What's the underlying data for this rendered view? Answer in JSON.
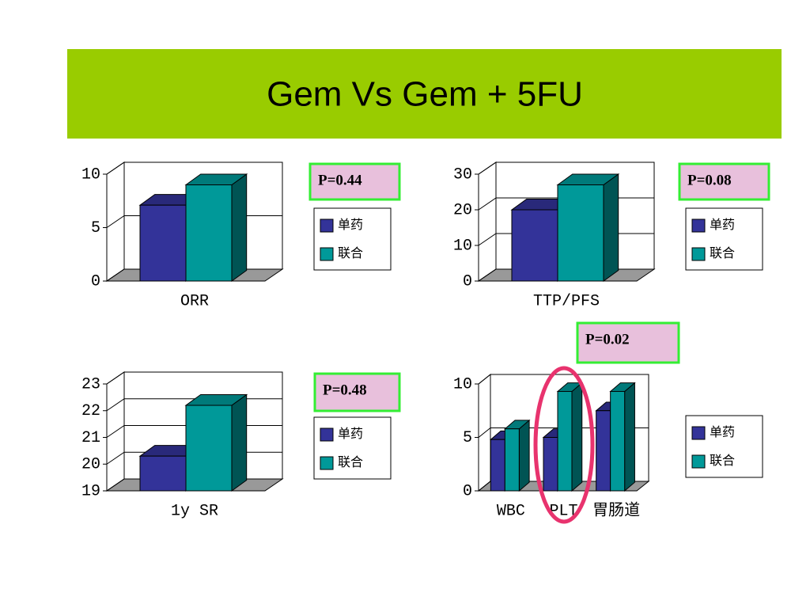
{
  "title": "Gem Vs Gem + 5FU",
  "chart_data": [
    {
      "type": "bar",
      "categories": [
        "ORR"
      ],
      "annotation": "P=0.44",
      "series": [
        {
          "name": "单药",
          "color": "#333399",
          "values": [
            7.1
          ]
        },
        {
          "name": "联合",
          "color": "#009999",
          "values": [
            9.0
          ]
        }
      ],
      "ylim": [
        0,
        10
      ],
      "yticks": [
        0,
        5,
        10
      ],
      "grid": true
    },
    {
      "type": "bar",
      "categories": [
        "TTP/PFS"
      ],
      "annotation": "P=0.08",
      "series": [
        {
          "name": "单药",
          "color": "#333399",
          "values": [
            20
          ]
        },
        {
          "name": "联合",
          "color": "#009999",
          "values": [
            27
          ]
        }
      ],
      "ylim": [
        0,
        30
      ],
      "yticks": [
        0,
        10,
        20,
        30
      ],
      "grid": true
    },
    {
      "type": "bar",
      "categories": [
        "1y SR"
      ],
      "annotation": "P=0.48",
      "series": [
        {
          "name": "单药",
          "color": "#333399",
          "values": [
            20.3
          ]
        },
        {
          "name": "联合",
          "color": "#009999",
          "values": [
            22.2
          ]
        }
      ],
      "ylim": [
        19,
        23
      ],
      "yticks": [
        19,
        20,
        21,
        22,
        23
      ],
      "grid": true
    },
    {
      "type": "bar",
      "categories": [
        "WBC",
        "PLT",
        "胃肠道"
      ],
      "annotation": "P=0.02",
      "series": [
        {
          "name": "单药",
          "color": "#333399",
          "values": [
            4.8,
            5.0,
            7.5
          ]
        },
        {
          "name": "联合",
          "color": "#009999",
          "values": [
            5.8,
            9.3,
            9.3
          ]
        }
      ],
      "ylim": [
        0,
        10
      ],
      "yticks": [
        0,
        5,
        10
      ],
      "grid": true
    }
  ]
}
